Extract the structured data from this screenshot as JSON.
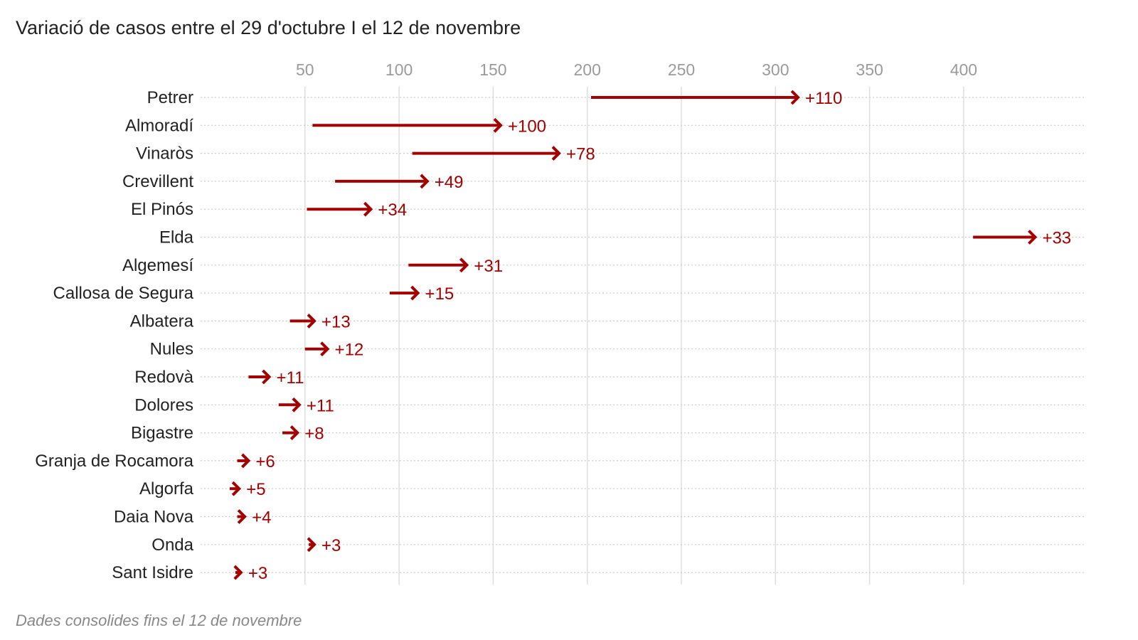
{
  "title": "Variació de casos entre el 29 d'octubre I el 12 de novembre",
  "note": "Dades consolides fins el 12 de novembre",
  "colors": {
    "arrow": "#a30000",
    "grid": "#dddddd",
    "rowline": "#cccccc"
  },
  "chart_data": {
    "type": "arrow-range",
    "title": "Variació de casos entre el 29 d'octubre I el 12 de novembre",
    "xticks": [
      50,
      100,
      150,
      200,
      250,
      300,
      350,
      400
    ],
    "xlim": [
      0,
      445
    ],
    "grid": true,
    "categories": [
      "Petrer",
      "Almoradí",
      "Vinaròs",
      "Crevillent",
      "El Pinós",
      "Elda",
      "Algemesí",
      "Callosa de Segura",
      "Albatera",
      "Nules",
      "Redovà",
      "Dolores",
      "Bigastre",
      "Granja de Rocamora",
      "Algorfa",
      "Daia Nova",
      "Onda",
      "Sant Isidre"
    ],
    "start": [
      202,
      54,
      107,
      66,
      51,
      405,
      105,
      95,
      42,
      50,
      20,
      36,
      38,
      14,
      10,
      14,
      52,
      13
    ],
    "end": [
      312,
      154,
      185,
      115,
      85,
      438,
      136,
      110,
      55,
      62,
      31,
      47,
      46,
      20,
      15,
      18,
      55,
      16
    ],
    "labels": [
      "+110",
      "+100",
      "+78",
      "+49",
      "+34",
      "+33",
      "+31",
      "+15",
      "+13",
      "+12",
      "+11",
      "+11",
      "+8",
      "+6",
      "+5",
      "+4",
      "+3",
      "+3"
    ]
  }
}
